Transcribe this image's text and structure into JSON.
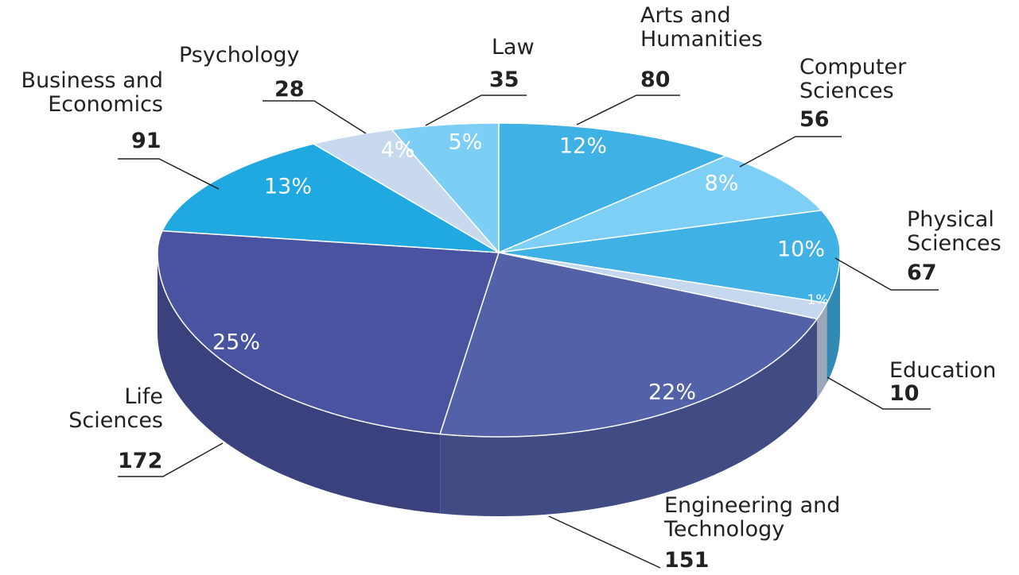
{
  "chart_data": {
    "type": "pie3d",
    "categories": [
      "Arts and\nHumanities",
      "Computer\nSciences",
      "Physical\nSciences",
      "Education",
      "Engineering and\nTechnology",
      "Life\nSciences",
      "Business and\nEconomics",
      "Psychology",
      "Law"
    ],
    "values": [
      80,
      56,
      67,
      10,
      151,
      172,
      91,
      28,
      35
    ],
    "percent_labels": [
      "12%",
      "8%",
      "10%",
      "1%",
      "22%",
      "25%",
      "13%",
      "4%",
      "5%"
    ],
    "colors": [
      "#3fb1e5",
      "#7dcff5",
      "#3fb1e5",
      "#c5d8ee",
      "#5361a9",
      "#4a53a0",
      "#20a8e0",
      "#c8d9ee",
      "#7dcef5"
    ]
  }
}
